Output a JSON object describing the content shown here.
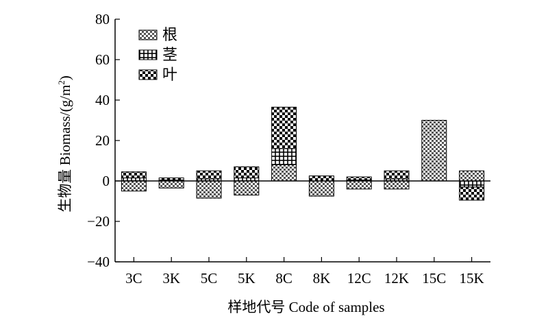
{
  "chart_data": {
    "type": "bar",
    "stacked": true,
    "stack_from_zero": true,
    "categories": [
      "3C",
      "3K",
      "5C",
      "5K",
      "8C",
      "8K",
      "12C",
      "12K",
      "15C",
      "15K"
    ],
    "series": [
      {
        "name": "根",
        "pattern": "check",
        "values": [
          -5,
          -3.5,
          -8.5,
          -7,
          8,
          -7.5,
          -4,
          -4,
          30,
          5
        ]
      },
      {
        "name": "茎",
        "pattern": "grid",
        "values": [
          1.5,
          0.5,
          1,
          1.5,
          8,
          0,
          0.5,
          1,
          0,
          -3
        ]
      },
      {
        "name": "叶",
        "pattern": "block",
        "values": [
          3,
          1,
          4,
          5.5,
          20.5,
          2.5,
          1.5,
          4,
          0,
          -6.5
        ]
      }
    ],
    "xlabel": "样地代号 Code of samples",
    "ylabel": "生物量 Biomass/(g/m",
    "ylabel_sup": "2",
    "ylabel_close": ")",
    "ylim": [
      -40,
      80
    ],
    "yticks": [
      -40,
      -20,
      0,
      20,
      40,
      60,
      80
    ],
    "ytick_labels": [
      "−40",
      "−20",
      "0",
      "20",
      "40",
      "60",
      "80"
    ],
    "grid": false,
    "legend_position": "top-left"
  }
}
